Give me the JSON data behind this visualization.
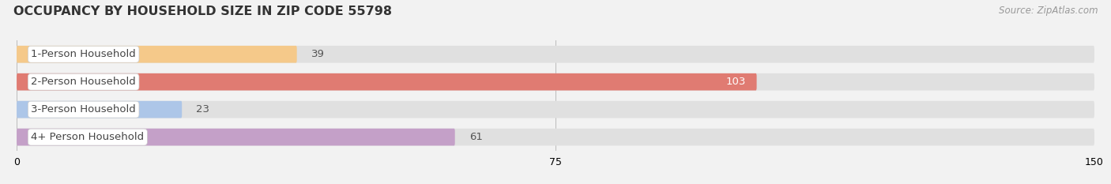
{
  "title": "OCCUPANCY BY HOUSEHOLD SIZE IN ZIP CODE 55798",
  "source": "Source: ZipAtlas.com",
  "categories": [
    "1-Person Household",
    "2-Person Household",
    "3-Person Household",
    "4+ Person Household"
  ],
  "values": [
    39,
    103,
    23,
    61
  ],
  "bar_colors": [
    "#f5c98a",
    "#e07b72",
    "#adc6e8",
    "#c4a0c8"
  ],
  "label_colors": [
    "#555555",
    "#ffffff",
    "#555555",
    "#555555"
  ],
  "xlim": [
    0,
    150
  ],
  "xticks": [
    0,
    75,
    150
  ],
  "bg_color": "#f2f2f2",
  "bar_bg_color": "#e0e0e0",
  "title_fontsize": 11.5,
  "label_fontsize": 9.5,
  "value_fontsize": 9.5,
  "source_fontsize": 8.5
}
